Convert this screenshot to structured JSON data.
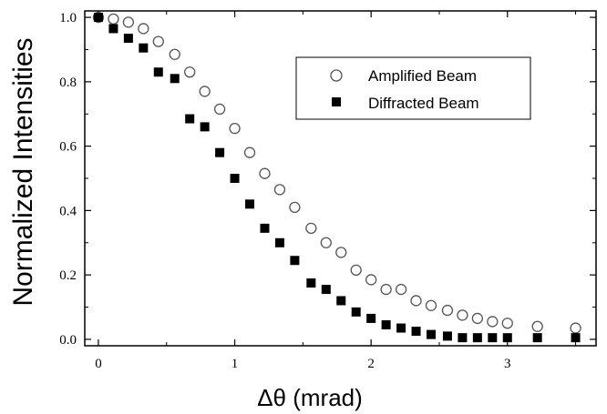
{
  "chart_data": {
    "type": "scatter",
    "xlabel": "Δθ (mrad)",
    "ylabel": "Normalized Intensities",
    "xlim": [
      -0.1,
      3.65
    ],
    "ylim": [
      -0.02,
      1.02
    ],
    "xticks": [
      0,
      1,
      2,
      3
    ],
    "xtick_labels": [
      "0",
      "1",
      "2",
      "3"
    ],
    "yticks": [
      0.0,
      0.2,
      0.4,
      0.6,
      0.8,
      1.0
    ],
    "ytick_labels": [
      "0.0",
      "0.2",
      "0.4",
      "0.6",
      "0.8",
      "1.0"
    ],
    "grid": false,
    "legend_position": "top-right",
    "series": [
      {
        "name": "Amplified Beam",
        "marker": "open-circle",
        "color": "#555555",
        "x": [
          0.0,
          0.11,
          0.22,
          0.33,
          0.44,
          0.56,
          0.67,
          0.78,
          0.89,
          1.0,
          1.11,
          1.22,
          1.33,
          1.44,
          1.56,
          1.67,
          1.78,
          1.89,
          2.0,
          2.11,
          2.22,
          2.33,
          2.44,
          2.56,
          2.67,
          2.78,
          2.89,
          3.0,
          3.22,
          3.5
        ],
        "y": [
          1.0,
          0.995,
          0.985,
          0.965,
          0.925,
          0.885,
          0.83,
          0.77,
          0.715,
          0.655,
          0.58,
          0.515,
          0.465,
          0.41,
          0.345,
          0.3,
          0.27,
          0.215,
          0.185,
          0.155,
          0.155,
          0.12,
          0.105,
          0.09,
          0.075,
          0.065,
          0.055,
          0.05,
          0.04,
          0.035
        ]
      },
      {
        "name": "Diffracted Beam",
        "marker": "filled-square",
        "color": "#000000",
        "x": [
          0.0,
          0.11,
          0.22,
          0.33,
          0.44,
          0.56,
          0.67,
          0.78,
          0.89,
          1.0,
          1.11,
          1.22,
          1.33,
          1.44,
          1.56,
          1.67,
          1.78,
          1.89,
          2.0,
          2.11,
          2.22,
          2.33,
          2.44,
          2.56,
          2.67,
          2.78,
          2.89,
          3.0,
          3.22,
          3.5
        ],
        "y": [
          1.0,
          0.965,
          0.935,
          0.905,
          0.83,
          0.81,
          0.685,
          0.66,
          0.58,
          0.5,
          0.42,
          0.345,
          0.3,
          0.245,
          0.175,
          0.155,
          0.12,
          0.085,
          0.065,
          0.045,
          0.035,
          0.025,
          0.015,
          0.01,
          0.005,
          0.005,
          0.005,
          0.005,
          0.005,
          0.005
        ]
      }
    ]
  }
}
